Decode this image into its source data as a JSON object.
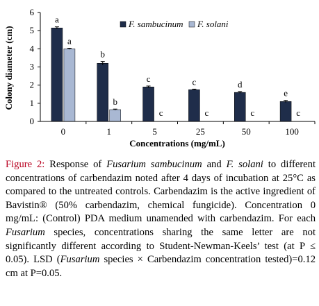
{
  "chart_data": {
    "type": "bar",
    "ylabel": "Colony diameter (cm)",
    "xlabel": "Concentrations (mg/mL)",
    "ylim": [
      0,
      6
    ],
    "yticks": [
      0,
      1,
      2,
      3,
      4,
      5,
      6
    ],
    "categories": [
      "0",
      "1",
      "5",
      "25",
      "50",
      "100"
    ],
    "legend_position": "top-right",
    "series": [
      {
        "name": "F. sambucinum",
        "color": "#1f2d4a",
        "values": [
          5.15,
          3.2,
          1.9,
          1.75,
          1.6,
          1.1
        ],
        "errors": [
          0.06,
          0.1,
          0.05,
          0.03,
          0.05,
          0.06
        ],
        "letters": [
          "a",
          "b",
          "c",
          "c",
          "d",
          "e"
        ]
      },
      {
        "name": "F. solani",
        "color": "#a9b8d3",
        "values": [
          4.0,
          0.65,
          0.0,
          0.0,
          0.0,
          0.0
        ],
        "errors": [
          0.03,
          0.03,
          0.0,
          0.0,
          0.0,
          0.0
        ],
        "letters": [
          "a",
          "b",
          "c",
          "c",
          "c",
          "c"
        ]
      }
    ]
  },
  "caption": {
    "label": "Figure 2:",
    "part1": " Response of ",
    "italic1": "Fusarium sambucinum",
    "part2": " and ",
    "italic2": "F. solani",
    "part3": " to different concentrations of carbendazim noted after 4 days of incubation at 25°C as compared to the untreated controls. Carbendazim is the active ingredient of Bavistin® (50% carbendazim, chemical fungicide). Concentration 0 mg/mL: (Control) PDA medium unamended with carbendazim. For each ",
    "italic3": "Fusarium",
    "part4": " species, concentrations sharing the same letter are not significantly different according to Student-Newman-Keels’ test (at P ≤ 0.05). LSD (",
    "italic4": "Fusarium",
    "part5": " species × Carbendazim concentration tested)=0.12 cm at P=0.05."
  }
}
